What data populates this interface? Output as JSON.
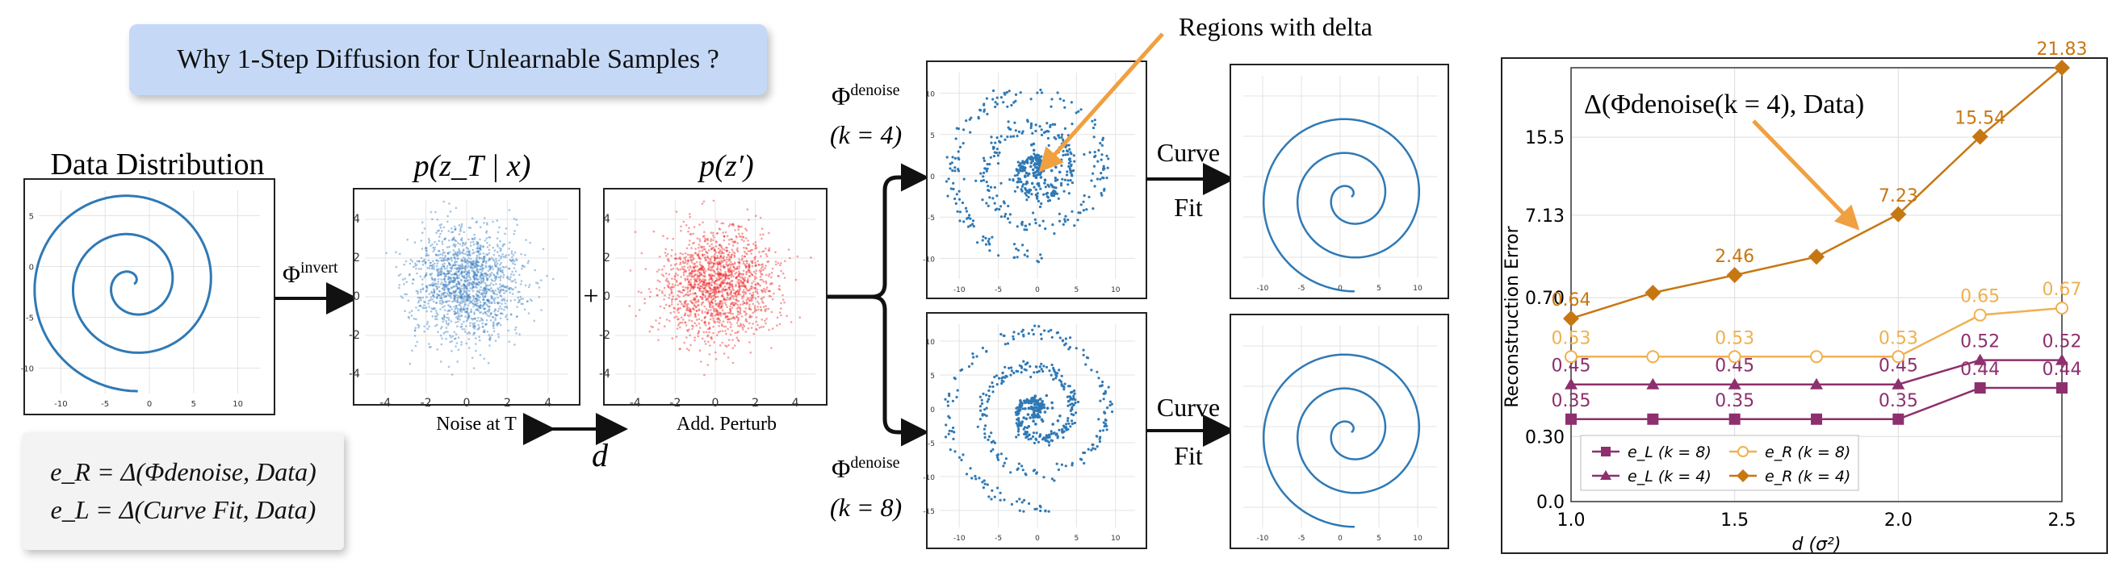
{
  "title": "Why 1-Step Diffusion for Unlearnable Samples ?",
  "data_distribution": "Data Distribution",
  "phi_invert": "Φ",
  "phi_invert_sup": "invert",
  "p_zt_given_x": "p(z_T | x)",
  "p_zprime": "p(z′)",
  "plus": "+",
  "noise_caption": "Noise at T",
  "perturb_caption": "Add. Perturb",
  "d_label": "d",
  "phi_denoise": "Φ",
  "phi_denoise_sup": "denoise",
  "k4_label": "(k = 4)",
  "k8_label": "(k = 8)",
  "curve_fit_1": "Curve",
  "curve_fit_2": "Fit",
  "regions_label": "Regions with delta",
  "delta_annotation": "Δ(Φdenoise(k = 4), Data)",
  "eq1": "e_R = Δ(Φdenoise, Data)",
  "eq2": "e_L = Δ(Curve Fit, Data)",
  "panel_ticks": {
    "spiral_x": [
      "-10",
      "-5",
      "0",
      "5",
      "10"
    ],
    "spiral_y": [
      "5",
      "0",
      "-5",
      "-10"
    ],
    "noise_x": [
      "-4",
      "-2",
      "0",
      "2",
      "4"
    ],
    "noise_y": [
      "4",
      "2",
      "0",
      "-2",
      "-4"
    ],
    "denoise_top_y": [
      "10",
      "5",
      "0",
      "-5",
      "-10"
    ],
    "denoise_bot_y": [
      "10",
      "5",
      "0",
      "-5",
      "-10",
      "-15"
    ]
  },
  "colors": {
    "spiral": "#2f79b5",
    "noise_blue": "#3a7fc0",
    "noise_red": "#ee2b2b",
    "arrow_orange": "#f0a040",
    "title_bg": "#c5d9f7",
    "eL": "#8e2f6e",
    "eR_k8": "#f0b050",
    "eR_k4": "#c77712"
  },
  "chart_data": {
    "type": "line",
    "xlabel": "d (σ²)",
    "ylabel": "Reconstruction Error",
    "x": [
      1.0,
      1.5,
      2.0,
      2.5
    ],
    "x_ticks": [
      "1.0",
      "1.5",
      "2.0",
      "2.5"
    ],
    "y_ticks": [
      "0.0",
      "0.30",
      "0.70",
      "7.13",
      "15.5"
    ],
    "annotation": "Δ(Φdenoise(k = 4), Data)",
    "legend_position": "lower-left",
    "grid": true,
    "series": [
      {
        "name": "e_L (k = 8)",
        "marker": "square",
        "color": "#8e2f6e",
        "x": [
          1.0,
          1.25,
          1.5,
          1.75,
          2.0,
          2.25,
          2.5
        ],
        "values": [
          0.35,
          0.35,
          0.35,
          0.35,
          0.35,
          0.44,
          0.44
        ]
      },
      {
        "name": "e_L (k = 4)",
        "marker": "triangle",
        "color": "#8e2f6e",
        "x": [
          1.0,
          1.25,
          1.5,
          1.75,
          2.0,
          2.25,
          2.5
        ],
        "values": [
          0.45,
          0.45,
          0.45,
          0.45,
          0.45,
          0.52,
          0.52
        ]
      },
      {
        "name": "e_R (k = 8)",
        "marker": "circle-open",
        "color": "#f0b050",
        "x": [
          1.0,
          1.25,
          1.5,
          1.75,
          2.0,
          2.25,
          2.5
        ],
        "values": [
          0.53,
          0.53,
          0.53,
          0.53,
          0.53,
          0.65,
          0.67
        ]
      },
      {
        "name": "e_R (k = 4)",
        "marker": "diamond",
        "color": "#c77712",
        "x": [
          1.0,
          1.25,
          1.5,
          1.75,
          2.0,
          2.25,
          2.5
        ],
        "values": [
          0.64,
          1.08,
          2.46,
          3.89,
          7.23,
          15.54,
          21.83
        ]
      }
    ]
  }
}
